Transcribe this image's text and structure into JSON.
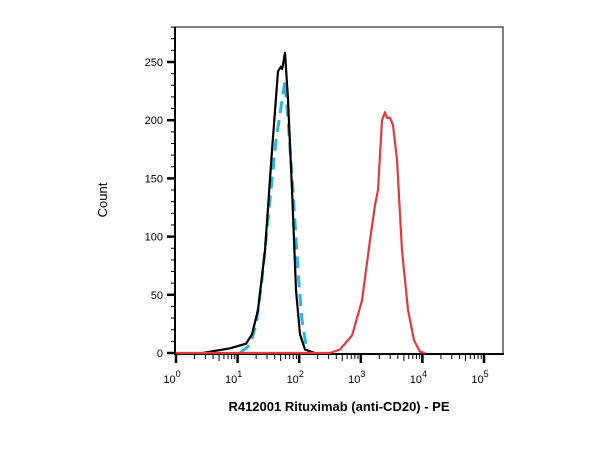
{
  "chart_data": {
    "type": "line",
    "title": "",
    "xlabel": "R412001 Rituximab (anti-CD20) - PE",
    "ylabel": "Count",
    "x_scale": "log",
    "xlim": [
      1,
      100000
    ],
    "ylim": [
      0,
      281
    ],
    "grid": false,
    "legend": "none",
    "x_ticks": [
      {
        "base": "10",
        "exp": "0",
        "value": 1
      },
      {
        "base": "10",
        "exp": "1",
        "value": 10
      },
      {
        "base": "10",
        "exp": "2",
        "value": 100
      },
      {
        "base": "10",
        "exp": "3",
        "value": 1000
      },
      {
        "base": "10",
        "exp": "4",
        "value": 10000
      },
      {
        "base": "10",
        "exp": "5",
        "value": 100000
      }
    ],
    "y_ticks": [
      "0",
      "50",
      "100",
      "150",
      "200",
      "250"
    ],
    "series": [
      {
        "color": "#29b6e0",
        "style": "dashed",
        "x": [
          10.9,
          15.9,
          19.9,
          24.9,
          33.5,
          41.9,
          58.8,
          65.8,
          79.4,
          95.3,
          111,
          129,
          150
        ],
        "y": [
          0,
          7,
          24,
          63,
          131,
          182,
          234,
          200,
          140,
          71,
          28,
          7,
          0
        ]
      },
      {
        "color": "#000000",
        "style": "solid",
        "x": [
          2.7,
          7.5,
          13.7,
          17.1,
          21.4,
          27.9,
          36.2,
          45.3,
          50.7,
          53,
          58.8,
          65.8,
          76.4,
          88.7,
          103,
          124,
          180
        ],
        "y": [
          0,
          4,
          8,
          16,
          37,
          88,
          174,
          242,
          246,
          244,
          258,
          218,
          140,
          54,
          16,
          3,
          0
        ]
      },
      {
        "color": "#e8383d",
        "style": "solid",
        "x": [
          1,
          316,
          459,
          719,
          1045,
          1409,
          1700,
          1903,
          2208,
          2470,
          2672,
          2977,
          3330,
          3870,
          4670,
          5840,
          7310,
          9140,
          11100
        ],
        "y": [
          0,
          0,
          3,
          15,
          45,
          97,
          127,
          140,
          200,
          207,
          202,
          202,
          196,
          166,
          88,
          37,
          11,
          1,
          0
        ]
      }
    ]
  }
}
